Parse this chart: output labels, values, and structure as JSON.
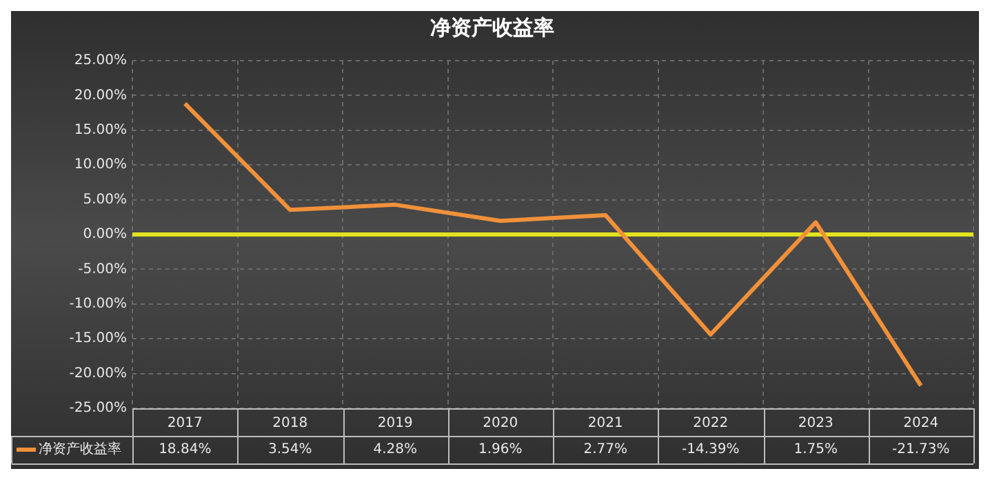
{
  "chart_data": {
    "type": "line",
    "title": "净资产收益率",
    "categories": [
      "2017",
      "2018",
      "2019",
      "2020",
      "2021",
      "2022",
      "2023",
      "2024"
    ],
    "series": [
      {
        "name": "净资产收益率",
        "color": "#f0913a",
        "values": [
          18.84,
          3.54,
          4.28,
          1.96,
          2.77,
          -14.39,
          1.75,
          -21.73
        ],
        "value_labels": [
          "18.84%",
          "3.54%",
          "4.28%",
          "1.96%",
          "2.77%",
          "-14.39%",
          "1.75%",
          "-21.73%"
        ]
      }
    ],
    "ylim": [
      -25,
      25
    ],
    "yticks": [
      {
        "value": -25,
        "label": "-25.00%"
      },
      {
        "value": -20,
        "label": "-20.00%"
      },
      {
        "value": -15,
        "label": "-15.00%"
      },
      {
        "value": -10,
        "label": "-10.00%"
      },
      {
        "value": -5,
        "label": "-5.00%"
      },
      {
        "value": 0,
        "label": "0.00%"
      },
      {
        "value": 5,
        "label": "5.00%"
      },
      {
        "value": 10,
        "label": "10.00%"
      },
      {
        "value": 15,
        "label": "15.00%"
      },
      {
        "value": 20,
        "label": "20.00%"
      },
      {
        "value": 25,
        "label": "25.00%"
      }
    ],
    "ref_lines": [
      {
        "axis": "y",
        "value": 0,
        "color": "#e2e21e"
      }
    ],
    "grid": true,
    "legend": "bottom left",
    "marker": "none",
    "line_style": "solid"
  }
}
